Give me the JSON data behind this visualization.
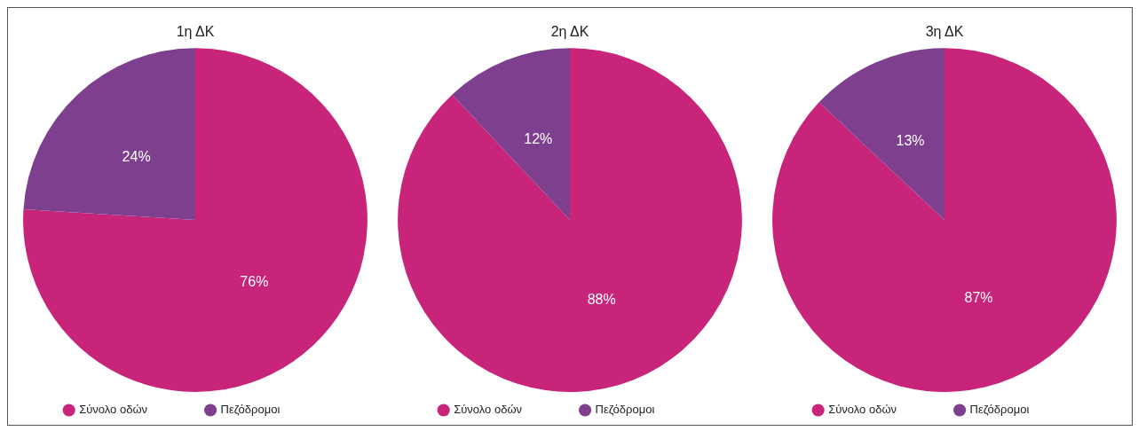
{
  "chart_data": [
    {
      "type": "pie",
      "title": "1η ΔΚ",
      "categories": [
        "Σύνολο οδών",
        "Πεζόδρομοι"
      ],
      "values": [
        76,
        24
      ],
      "value_labels": [
        "76%",
        "24%"
      ],
      "colors": [
        "#c8247a",
        "#7d3f8e"
      ],
      "legend": "bottom"
    },
    {
      "type": "pie",
      "title": "2η ΔΚ",
      "categories": [
        "Σύνολο οδών",
        "Πεζόδρομοι"
      ],
      "values": [
        88,
        12
      ],
      "value_labels": [
        "88%",
        "12%"
      ],
      "colors": [
        "#c8247a",
        "#7d3f8e"
      ],
      "legend": "bottom"
    },
    {
      "type": "pie",
      "title": "3η ΔΚ",
      "categories": [
        "Σύνολο οδών",
        "Πεζόδρομοι"
      ],
      "values": [
        87,
        13
      ],
      "value_labels": [
        "87%",
        "13%"
      ],
      "colors": [
        "#c8247a",
        "#7d3f8e"
      ],
      "legend": "bottom"
    }
  ]
}
